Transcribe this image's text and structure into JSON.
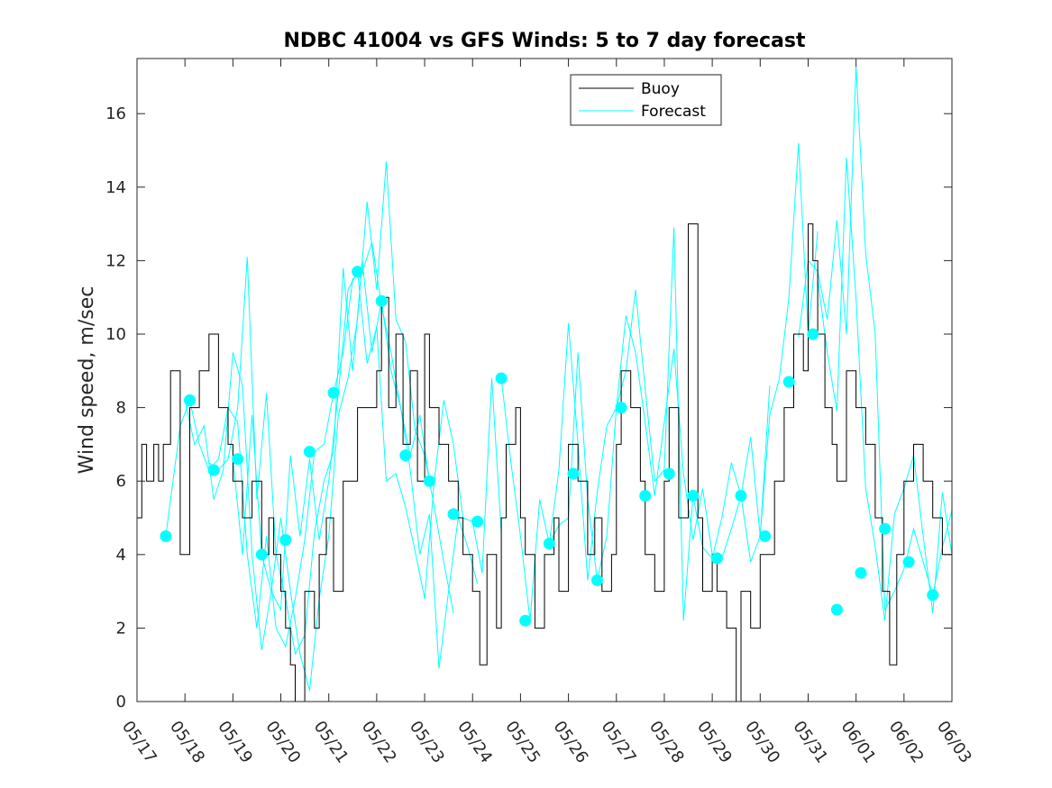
{
  "chart_data": {
    "type": "line",
    "title": "NDBC 41004 vs GFS Winds: 5 to 7 day forecast",
    "xlabel": "",
    "ylabel": "Wind speed, m/sec",
    "x_range": [
      "05/17",
      "06/03"
    ],
    "ylim": [
      0,
      17.5
    ],
    "y_ticks": [
      0,
      2,
      4,
      6,
      8,
      10,
      12,
      14,
      16
    ],
    "x_ticks": [
      "05/17",
      "05/18",
      "05/19",
      "05/20",
      "05/21",
      "05/22",
      "05/23",
      "05/24",
      "05/25",
      "05/26",
      "05/27",
      "05/28",
      "05/29",
      "05/30",
      "05/31",
      "06/01",
      "06/02",
      "06/03"
    ],
    "grid": false,
    "legend": {
      "position": "top-right-center",
      "entries": [
        "Buoy",
        "Forecast"
      ]
    },
    "colors": {
      "buoy": "#000000",
      "forecast": "#00ffff"
    },
    "series": [
      {
        "name": "Buoy",
        "style": "step",
        "x": [
          0,
          0.1,
          0.2,
          0.35,
          0.45,
          0.55,
          0.7,
          0.9,
          1.1,
          1.3,
          1.5,
          1.7,
          1.9,
          2.0,
          2.2,
          2.4,
          2.6,
          2.75,
          2.85,
          3.0,
          3.1,
          3.2,
          3.3,
          3.5,
          3.7,
          3.8,
          3.95,
          4.1,
          4.3,
          4.45,
          4.6,
          4.8,
          5.0,
          5.1,
          5.25,
          5.4,
          5.55,
          5.7,
          5.85,
          6.0,
          6.1,
          6.3,
          6.5,
          6.7,
          6.8,
          7.0,
          7.15,
          7.3,
          7.5,
          7.6,
          7.7,
          7.9,
          8.0,
          8.1,
          8.3,
          8.5,
          8.7,
          8.8,
          9.0,
          9.2,
          9.4,
          9.55,
          9.7,
          9.9,
          10.0,
          10.1,
          10.3,
          10.5,
          10.6,
          10.8,
          11.0,
          11.1,
          11.3,
          11.5,
          11.7,
          11.8,
          12.0,
          12.1,
          12.3,
          12.5,
          12.6,
          12.8,
          13.0,
          13.1,
          13.3,
          13.5,
          13.7,
          13.9,
          14.0,
          14.1,
          14.2,
          14.35,
          14.5,
          14.6,
          14.8,
          15.0,
          15.2,
          15.4,
          15.55,
          15.7,
          15.85,
          16.0,
          16.2,
          16.4,
          16.6,
          16.8,
          17.0
        ],
        "values": [
          5,
          7,
          6,
          7,
          6,
          7,
          9,
          4,
          8,
          9,
          10,
          8,
          7,
          6,
          5,
          6,
          4,
          5,
          4,
          3,
          2,
          1,
          0,
          3,
          2,
          4,
          5,
          3,
          6,
          6,
          8,
          8,
          9,
          11,
          8,
          10,
          7,
          9,
          6,
          10,
          8,
          7,
          6,
          5,
          4,
          3,
          1,
          4,
          2,
          5,
          7,
          8,
          5,
          4,
          2,
          4,
          5,
          3,
          7,
          6,
          4,
          5,
          3,
          4,
          7,
          9,
          8,
          6,
          4,
          3,
          6,
          8,
          5,
          13,
          5,
          3,
          4,
          3,
          2,
          0,
          3,
          2,
          4,
          4,
          6,
          8,
          10,
          9,
          13,
          12,
          10,
          8,
          7,
          6,
          9,
          8,
          7,
          5,
          3,
          1,
          4,
          6,
          7,
          6,
          5,
          4,
          4
        ]
      },
      {
        "name": "Forecast",
        "style": "lines",
        "lines": [
          {
            "x": [
              0.6,
              0.9,
              1.1,
              1.3,
              1.5,
              1.7,
              1.9,
              2.1,
              2.3,
              2.5,
              2.7,
              2.9,
              3.1,
              3.3,
              3.5,
              3.7,
              3.9,
              4.1,
              4.3,
              4.5,
              4.7,
              4.9,
              5.1,
              5.3,
              5.5,
              5.7,
              5.9,
              6.1
            ],
            "y": [
              4.5,
              7.5,
              8.2,
              7.0,
              6.3,
              6.6,
              8.0,
              7.6,
              4.0,
              2.0,
              4.5,
              2.0,
              1.5,
              2.8,
              4.4,
              6.8,
              7.0,
              8.4,
              9.5,
              11.5,
              11.7,
              12.5,
              10.8,
              9.5,
              8.0,
              6.7,
              7.8,
              6.0
            ]
          },
          {
            "x": [
              1.0,
              1.2,
              1.4,
              1.6,
              1.8,
              2.0,
              2.2,
              2.4,
              2.6,
              2.8,
              3.0,
              3.2,
              3.4,
              3.6,
              3.8,
              4.0,
              4.2,
              4.4,
              4.6,
              4.8,
              5.0,
              5.2,
              5.4,
              5.6,
              5.8,
              6.0,
              6.2,
              6.4,
              6.6
            ],
            "y": [
              8.2,
              7.0,
              7.5,
              5.5,
              6.3,
              9.5,
              8.6,
              4.0,
              1.4,
              3.0,
              5.0,
              3.0,
              1.3,
              0.3,
              2.8,
              4.5,
              7.8,
              8.8,
              10.4,
              13.6,
              11.2,
              14.7,
              10.4,
              9.8,
              7.4,
              6.7,
              5.3,
              3.8,
              2.4
            ]
          },
          {
            "x": [
              1.5,
              1.7,
              1.9,
              2.1,
              2.3,
              2.5,
              2.7,
              2.9,
              3.1,
              3.3,
              3.5,
              3.7,
              3.9,
              4.1,
              4.3,
              4.5,
              4.7,
              4.9,
              5.1,
              5.3,
              5.5,
              5.7,
              5.9,
              6.1,
              6.3,
              6.5,
              6.7,
              6.9,
              7.1
            ],
            "y": [
              6.5,
              6.3,
              6.6,
              8.0,
              12.1,
              5.5,
              8.4,
              4.0,
              2.8,
              1.3,
              1.8,
              4.6,
              6.0,
              6.8,
              11.8,
              9.0,
              12.0,
              9.5,
              10.9,
              9.0,
              8.0,
              6.3,
              4.0,
              5.1,
              0.9,
              3.0,
              5.0,
              4.2,
              3.2
            ]
          },
          {
            "x": [
              2.0,
              2.2,
              2.4,
              2.6,
              2.8,
              3.0,
              3.2,
              3.4,
              3.6,
              3.8,
              4.0,
              4.2,
              4.4,
              4.6,
              4.8,
              5.0,
              5.2,
              5.4,
              5.6,
              5.8,
              6.0,
              6.2,
              6.4,
              6.6,
              6.8,
              7.0,
              7.2,
              7.4,
              7.6
            ],
            "y": [
              6.6,
              4.0,
              7.8,
              4.0,
              3.0,
              2.5,
              6.7,
              4.5,
              6.6,
              4.4,
              6.0,
              8.4,
              11.2,
              11.7,
              9.2,
              10.2,
              6.0,
              6.2,
              5.3,
              4.1,
              2.8,
              6.0,
              8.2,
              7.0,
              5.0,
              4.9,
              3.5,
              8.8,
              4.6
            ]
          },
          {
            "x": [
              7.6,
              7.8,
              8.0,
              8.2,
              8.4,
              8.6,
              8.8,
              9.0,
              9.2,
              9.4,
              9.6,
              9.8,
              10.0,
              10.2,
              10.4,
              10.6,
              10.8,
              11.0,
              11.2,
              11.4,
              11.6,
              11.8,
              12.0,
              12.2,
              12.4,
              12.6,
              12.8,
              13.0,
              13.2
            ],
            "y": [
              8.8,
              6.5,
              4.5,
              2.2,
              5.5,
              4.3,
              6.3,
              10.3,
              7.0,
              3.3,
              5.7,
              7.5,
              8.0,
              10.5,
              9.5,
              7.6,
              5.6,
              7.6,
              9.6,
              6.2,
              4.4,
              5.8,
              4.0,
              3.9,
              4.7,
              5.6,
              7.2,
              4.5,
              8.6
            ]
          },
          {
            "x": [
              8.6,
              8.8,
              9.0,
              9.2,
              9.4,
              9.6,
              9.8,
              10.0,
              10.2,
              10.4,
              10.6,
              10.8,
              11.0,
              11.2,
              11.4,
              11.6,
              11.8,
              12.0,
              12.2,
              12.4,
              12.6,
              12.8,
              13.0,
              13.2,
              13.4,
              13.6,
              13.8,
              14.0,
              14.2
            ],
            "y": [
              4.3,
              4.8,
              5.0,
              9.5,
              5.5,
              3.3,
              4.5,
              8.0,
              9.0,
              11.2,
              8.5,
              6.0,
              6.3,
              12.9,
              2.2,
              5.6,
              4.2,
              3.9,
              5.0,
              6.5,
              5.6,
              3.8,
              4.5,
              7.8,
              8.8,
              11.0,
              15.2,
              10.0,
              12.8
            ]
          },
          {
            "x": [
              13.8,
              14.0,
              14.2,
              14.4,
              14.6,
              14.8,
              15.0,
              15.2,
              15.4,
              15.6,
              15.8,
              16.0,
              16.2,
              16.4,
              16.6,
              16.8,
              17.0
            ],
            "y": [
              9.9,
              12.0,
              11.7,
              10.4,
              13.1,
              10.0,
              17.3,
              12.2,
              10.0,
              2.5,
              3.0,
              3.6,
              4.7,
              3.8,
              2.9,
              4.2,
              5.2
            ]
          },
          {
            "x": [
              14.2,
              14.4,
              14.6,
              14.8,
              15.0,
              15.2,
              15.4,
              15.6,
              15.8,
              16.0,
              16.2,
              16.4,
              16.6,
              16.8,
              17.0
            ],
            "y": [
              11.5,
              9.5,
              7.9,
              14.8,
              11.0,
              5.8,
              4.2,
              2.2,
              5.1,
              5.8,
              6.7,
              4.5,
              2.4,
              5.7,
              4.0
            ]
          }
        ],
        "markers": {
          "x": [
            0.6,
            1.1,
            1.6,
            2.1,
            2.6,
            3.1,
            3.6,
            4.1,
            4.6,
            5.1,
            5.6,
            6.1,
            6.6,
            7.1,
            7.6,
            8.1,
            8.6,
            9.1,
            9.6,
            10.1,
            10.6,
            11.1,
            11.6,
            12.1,
            12.6,
            13.1,
            13.6,
            14.1,
            14.6,
            15.1,
            15.6,
            16.1,
            16.6
          ],
          "y": [
            4.5,
            8.2,
            6.3,
            6.6,
            4.0,
            4.4,
            6.8,
            8.4,
            11.7,
            10.9,
            6.7,
            6.0,
            5.1,
            4.9,
            8.8,
            2.2,
            4.3,
            6.2,
            3.3,
            8.0,
            5.6,
            6.2,
            5.6,
            3.9,
            5.6,
            4.5,
            8.7,
            10.0,
            2.5,
            3.5,
            4.7,
            3.8,
            2.9
          ]
        }
      }
    ]
  }
}
